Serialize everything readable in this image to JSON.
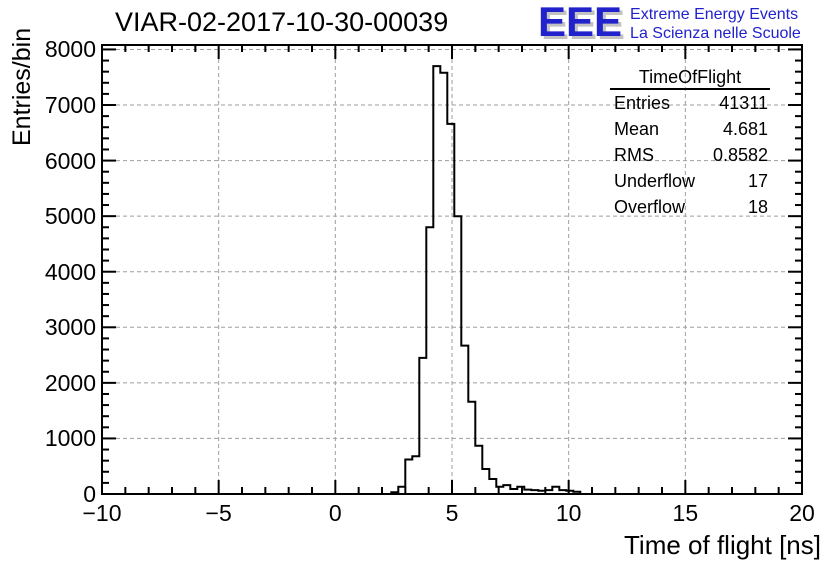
{
  "logo": {
    "acronym": "EEE",
    "line1": "Extreme Energy Events",
    "line2": "La Scienza nelle Scuole",
    "color": "#2222cc",
    "shadow_color": "#c2c2c2"
  },
  "stats_box": {
    "title": "TimeOfFlight",
    "rows": [
      {
        "label": "Entries",
        "value": "41311"
      },
      {
        "label": "Mean",
        "value": "4.681"
      },
      {
        "label": "RMS",
        "value": "0.8582"
      },
      {
        "label": "Underflow",
        "value": "17"
      },
      {
        "label": "Overflow",
        "value": "18"
      }
    ]
  },
  "chart_data": {
    "type": "bar",
    "subtype": "step-histogram",
    "title": "VIAR-02-2017-10-30-00039",
    "xlabel": "Time of flight [ns]",
    "ylabel": "Entries/bin",
    "xlim": [
      -10,
      20
    ],
    "ylim": [
      0,
      8080
    ],
    "grid": true,
    "legend": "none",
    "x_major_ticks": [
      -10,
      -5,
      0,
      5,
      10,
      15,
      20
    ],
    "x_tick_labels": [
      "−10",
      "−5",
      "0",
      "5",
      "10",
      "15",
      "20"
    ],
    "x_minor_step": 1,
    "x_grid_values": [
      -5,
      0,
      5,
      10,
      15
    ],
    "y_major_ticks": [
      0,
      1000,
      2000,
      3000,
      4000,
      5000,
      6000,
      7000,
      8000
    ],
    "y_tick_labels": [
      "0",
      "1000",
      "2000",
      "3000",
      "4000",
      "5000",
      "6000",
      "7000",
      "8000"
    ],
    "y_minor_step": 200,
    "y_grid_values": [
      1000,
      2000,
      3000,
      4000,
      5000,
      6000,
      7000,
      8000
    ],
    "line_color": "#000000",
    "grid_color": "#9e9e9e",
    "frame_color": "#000000",
    "bins": {
      "start": 2.4,
      "width": 0.3,
      "values": [
        30,
        130,
        620,
        680,
        2450,
        4800,
        7700,
        7580,
        6660,
        5000,
        2670,
        1660,
        870,
        450,
        270,
        130,
        160,
        90,
        130,
        80,
        70,
        60,
        70,
        130,
        70,
        60,
        40
      ]
    }
  }
}
